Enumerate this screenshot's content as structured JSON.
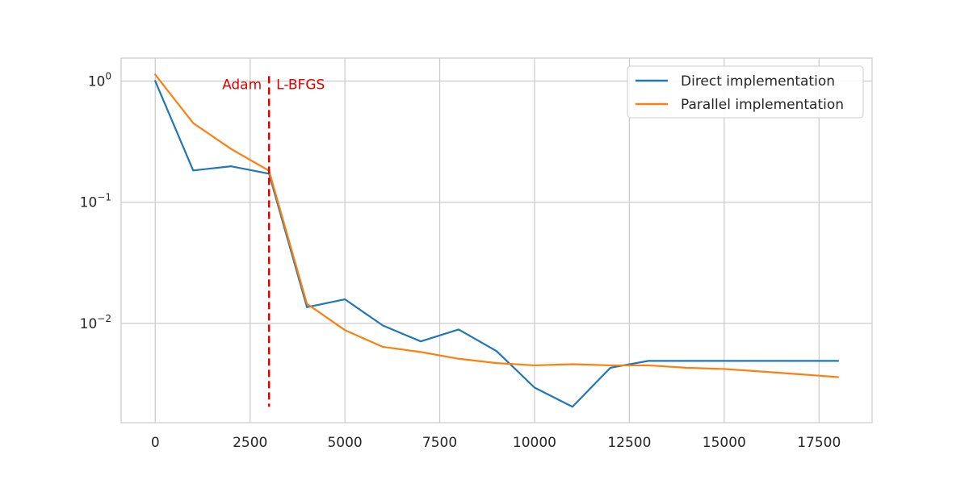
{
  "chart_data": {
    "type": "line",
    "title": "",
    "xlabel": "",
    "ylabel": "",
    "xlim": [
      -900,
      18900
    ],
    "ylim_log10": [
      -2.82,
      0.19
    ],
    "yscale": "log",
    "grid": true,
    "legend_position": "top-right",
    "x_ticks": [
      0,
      2500,
      5000,
      7500,
      10000,
      12500,
      15000,
      17500
    ],
    "x_tick_labels": [
      "0",
      "2500",
      "5000",
      "7500",
      "10000",
      "12500",
      "15000",
      "17500"
    ],
    "y_ticks": [
      1,
      0.1,
      0.01
    ],
    "y_tick_base": [
      "10",
      "10",
      "10"
    ],
    "y_tick_exp": [
      "0",
      "−1",
      "−2"
    ],
    "x": [
      0,
      1000,
      2000,
      3000,
      4000,
      5000,
      6000,
      7000,
      8000,
      9000,
      10000,
      11000,
      12000,
      13000,
      14000,
      15000,
      16000,
      17000,
      18000
    ],
    "series": [
      {
        "name": "Direct implementation",
        "color": "#1f77b4",
        "values": [
          1.0,
          0.183,
          0.198,
          0.172,
          0.0136,
          0.0158,
          0.0096,
          0.0071,
          0.0089,
          0.0059,
          0.00295,
          0.00205,
          0.0043,
          0.0049,
          0.0049,
          0.0049,
          0.0049,
          0.0049,
          0.0049
        ]
      },
      {
        "name": "Parallel implementation",
        "color": "#ff7f0e",
        "values": [
          1.13,
          0.45,
          0.275,
          0.182,
          0.0145,
          0.0088,
          0.0064,
          0.0058,
          0.0051,
          0.0047,
          0.0045,
          0.0046,
          0.0045,
          0.0045,
          0.0043,
          0.0042,
          0.004,
          0.0038,
          0.0036
        ]
      }
    ],
    "annotation": {
      "x": 3000,
      "y_range": [
        0.00205,
        1.1
      ],
      "color": "#e00000",
      "left_label": "Adam",
      "right_label": "L-BFGS"
    }
  }
}
